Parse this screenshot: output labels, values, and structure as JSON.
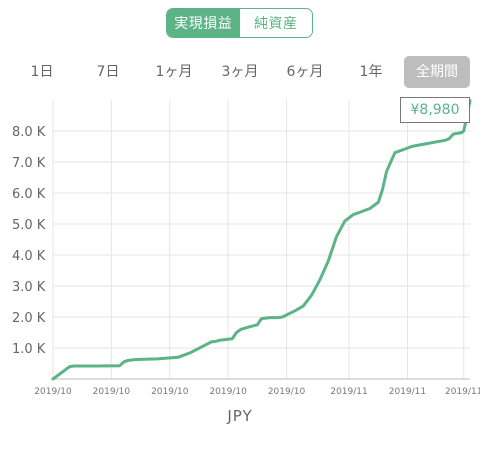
{
  "toggle": {
    "active_label": "実現損益",
    "inactive_label": "純資産"
  },
  "periods": [
    {
      "label": "1日"
    },
    {
      "label": "7日"
    },
    {
      "label": "1ヶ月"
    },
    {
      "label": "3ヶ月"
    },
    {
      "label": "6ヶ月"
    },
    {
      "label": "1年"
    },
    {
      "label": "全期間"
    }
  ],
  "callout": {
    "value": "¥8,980"
  },
  "currency": "JPY",
  "colors": {
    "accent": "#5bb386",
    "grid": "#e6e6e6",
    "active_period_bg": "#bdbdbd"
  },
  "chart_data": {
    "type": "line",
    "series": [
      {
        "x": [
          0,
          0.03,
          0.04,
          0.05,
          0.1,
          0.16,
          0.17,
          0.18,
          0.2,
          0.25,
          0.3,
          0.33,
          0.38,
          0.385,
          0.4,
          0.43,
          0.44,
          0.45,
          0.47,
          0.49,
          0.5,
          0.52,
          0.54,
          0.55,
          0.58,
          0.6,
          0.62,
          0.64,
          0.66,
          0.68,
          0.7,
          0.72,
          0.74,
          0.76,
          0.78,
          0.79,
          0.8,
          0.82,
          0.84,
          0.86,
          0.88,
          0.9,
          0.92,
          0.94,
          0.95,
          0.96,
          0.98,
          0.985,
          0.99,
          1.0
        ],
        "y": [
          0,
          300,
          400,
          420,
          420,
          430,
          550,
          600,
          630,
          650,
          700,
          850,
          1200,
          1200,
          1250,
          1300,
          1500,
          1600,
          1680,
          1750,
          1950,
          1980,
          1980,
          2000,
          2200,
          2350,
          2700,
          3200,
          3800,
          4600,
          5100,
          5300,
          5400,
          5500,
          5700,
          6100,
          6700,
          7300,
          7400,
          7500,
          7550,
          7600,
          7650,
          7700,
          7750,
          7900,
          7950,
          8000,
          8300,
          8980
        ]
      }
    ],
    "ylim": [
      0,
      9000
    ],
    "yticks": [
      "1.0 K",
      "2.0 K",
      "3.0 K",
      "4.0 K",
      "5.0 K",
      "6.0 K",
      "7.0 K",
      "8.0 K"
    ],
    "ytick_values": [
      1000,
      2000,
      3000,
      4000,
      5000,
      6000,
      7000,
      8000
    ],
    "xtick_labels": [
      "2019/10",
      "2019/10",
      "2019/10",
      "2019/10",
      "2019/10",
      "2019/11",
      "2019/11",
      "2019/11"
    ],
    "xtick_positions": [
      0,
      0.14,
      0.28,
      0.42,
      0.56,
      0.71,
      0.85,
      0.985
    ],
    "grid": true
  }
}
